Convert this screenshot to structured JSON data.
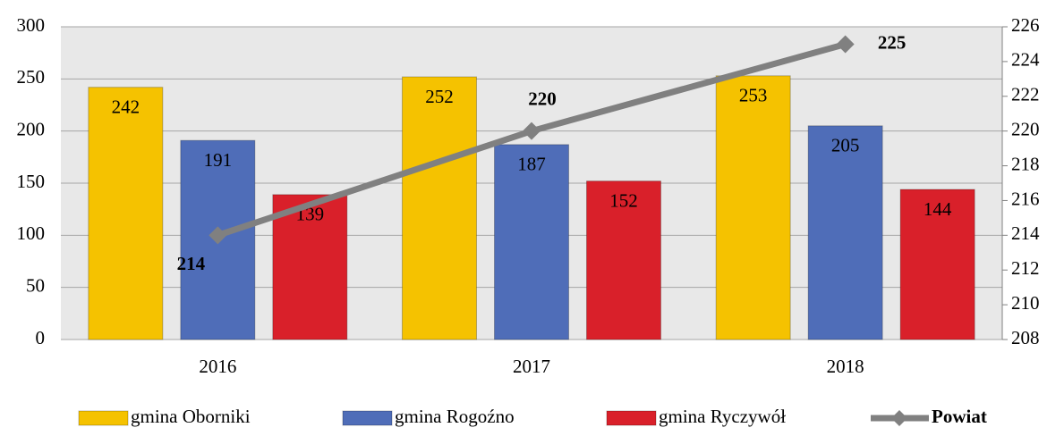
{
  "chart_data": {
    "type": "bar",
    "categories": [
      "2016",
      "2017",
      "2018"
    ],
    "series": [
      {
        "name": "gmina Oborniki",
        "color": "#f5c200",
        "values": [
          242,
          252,
          253
        ]
      },
      {
        "name": "gmina Rogoźno",
        "color": "#4f6db8",
        "values": [
          191,
          187,
          205
        ]
      },
      {
        "name": "gmina Ryczywół",
        "color": "#d9202a",
        "values": [
          139,
          152,
          144
        ]
      },
      {
        "name": "Powiat",
        "color": "#808080",
        "type": "line",
        "axis": "y2",
        "values": [
          214,
          220,
          225
        ]
      }
    ],
    "ylim": [
      0,
      300
    ],
    "yticks": [
      0,
      50,
      100,
      150,
      200,
      250,
      300
    ],
    "y2lim": [
      208,
      226
    ],
    "y2ticks": [
      208,
      210,
      212,
      214,
      216,
      218,
      220,
      222,
      224,
      226
    ],
    "grid": true,
    "legend": "bottom"
  }
}
